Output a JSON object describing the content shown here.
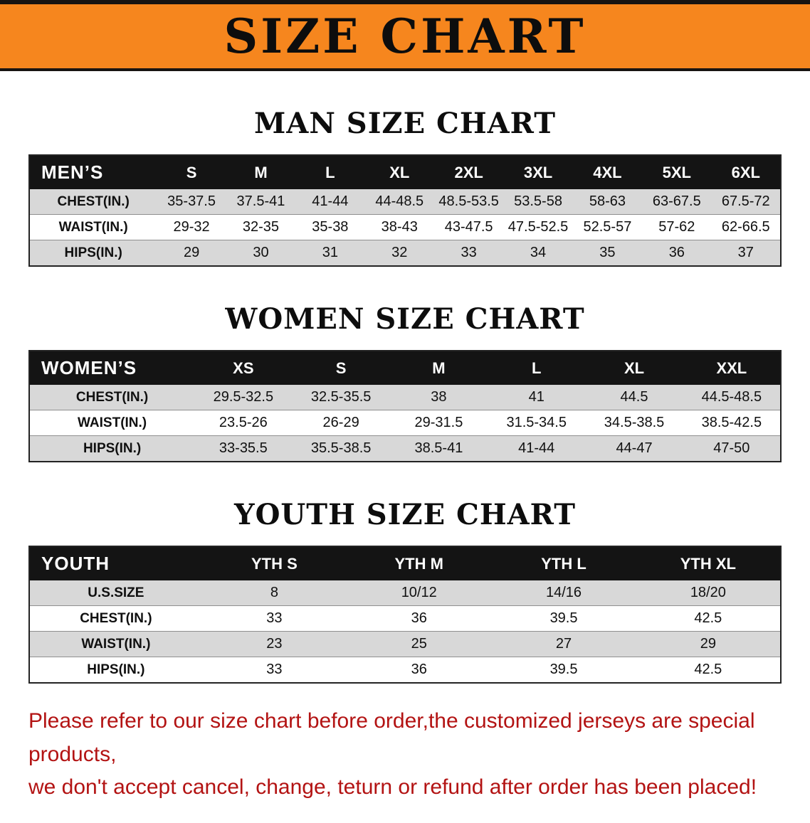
{
  "banner": {
    "title": "SIZE CHART",
    "bg_color": "#f6861e"
  },
  "sections": [
    {
      "heading": "MAN SIZE CHART",
      "table": {
        "header": [
          "MEN’S",
          "S",
          "M",
          "L",
          "XL",
          "2XL",
          "3XL",
          "4XL",
          "5XL",
          "6XL"
        ],
        "rows": [
          {
            "label": "CHEST(IN.)",
            "values": [
              "35-37.5",
              "37.5-41",
              "41-44",
              "44-48.5",
              "48.5-53.5",
              "53.5-58",
              "58-63",
              "63-67.5",
              "67.5-72"
            ]
          },
          {
            "label": "WAIST(IN.)",
            "values": [
              "29-32",
              "32-35",
              "35-38",
              "38-43",
              "43-47.5",
              "47.5-52.5",
              "52.5-57",
              "57-62",
              "62-66.5"
            ]
          },
          {
            "label": "HIPS(IN.)",
            "values": [
              "29",
              "30",
              "31",
              "32",
              "33",
              "34",
              "35",
              "36",
              "37"
            ]
          }
        ]
      }
    },
    {
      "heading": "WOMEN SIZE CHART",
      "table": {
        "header": [
          "WOMEN’S",
          "XS",
          "S",
          "M",
          "L",
          "XL",
          "XXL"
        ],
        "rows": [
          {
            "label": "CHEST(IN.)",
            "values": [
              "29.5-32.5",
              "32.5-35.5",
              "38",
              "41",
              "44.5",
              "44.5-48.5"
            ]
          },
          {
            "label": "WAIST(IN.)",
            "values": [
              "23.5-26",
              "26-29",
              "29-31.5",
              "31.5-34.5",
              "34.5-38.5",
              "38.5-42.5"
            ]
          },
          {
            "label": "HIPS(IN.)",
            "values": [
              "33-35.5",
              "35.5-38.5",
              "38.5-41",
              "41-44",
              "44-47",
              "47-50"
            ]
          }
        ]
      }
    },
    {
      "heading": "YOUTH SIZE CHART",
      "table": {
        "header": [
          "YOUTH",
          "YTH S",
          "YTH M",
          "YTH L",
          "YTH XL"
        ],
        "rows": [
          {
            "label": "U.S.SIZE",
            "values": [
              "8",
              "10/12",
              "14/16",
              "18/20"
            ]
          },
          {
            "label": "CHEST(IN.)",
            "values": [
              "33",
              "36",
              "39.5",
              "42.5"
            ]
          },
          {
            "label": "WAIST(IN.)",
            "values": [
              "23",
              "25",
              "27",
              "29"
            ]
          },
          {
            "label": "HIPS(IN.)",
            "values": [
              "33",
              "36",
              "39.5",
              "42.5"
            ]
          }
        ]
      }
    }
  ],
  "footer": {
    "line1": "Please refer to our size chart before order,the customized jerseys are special products,",
    "line2": "we don't accept cancel, change, teturn or refund after order has been placed!"
  }
}
